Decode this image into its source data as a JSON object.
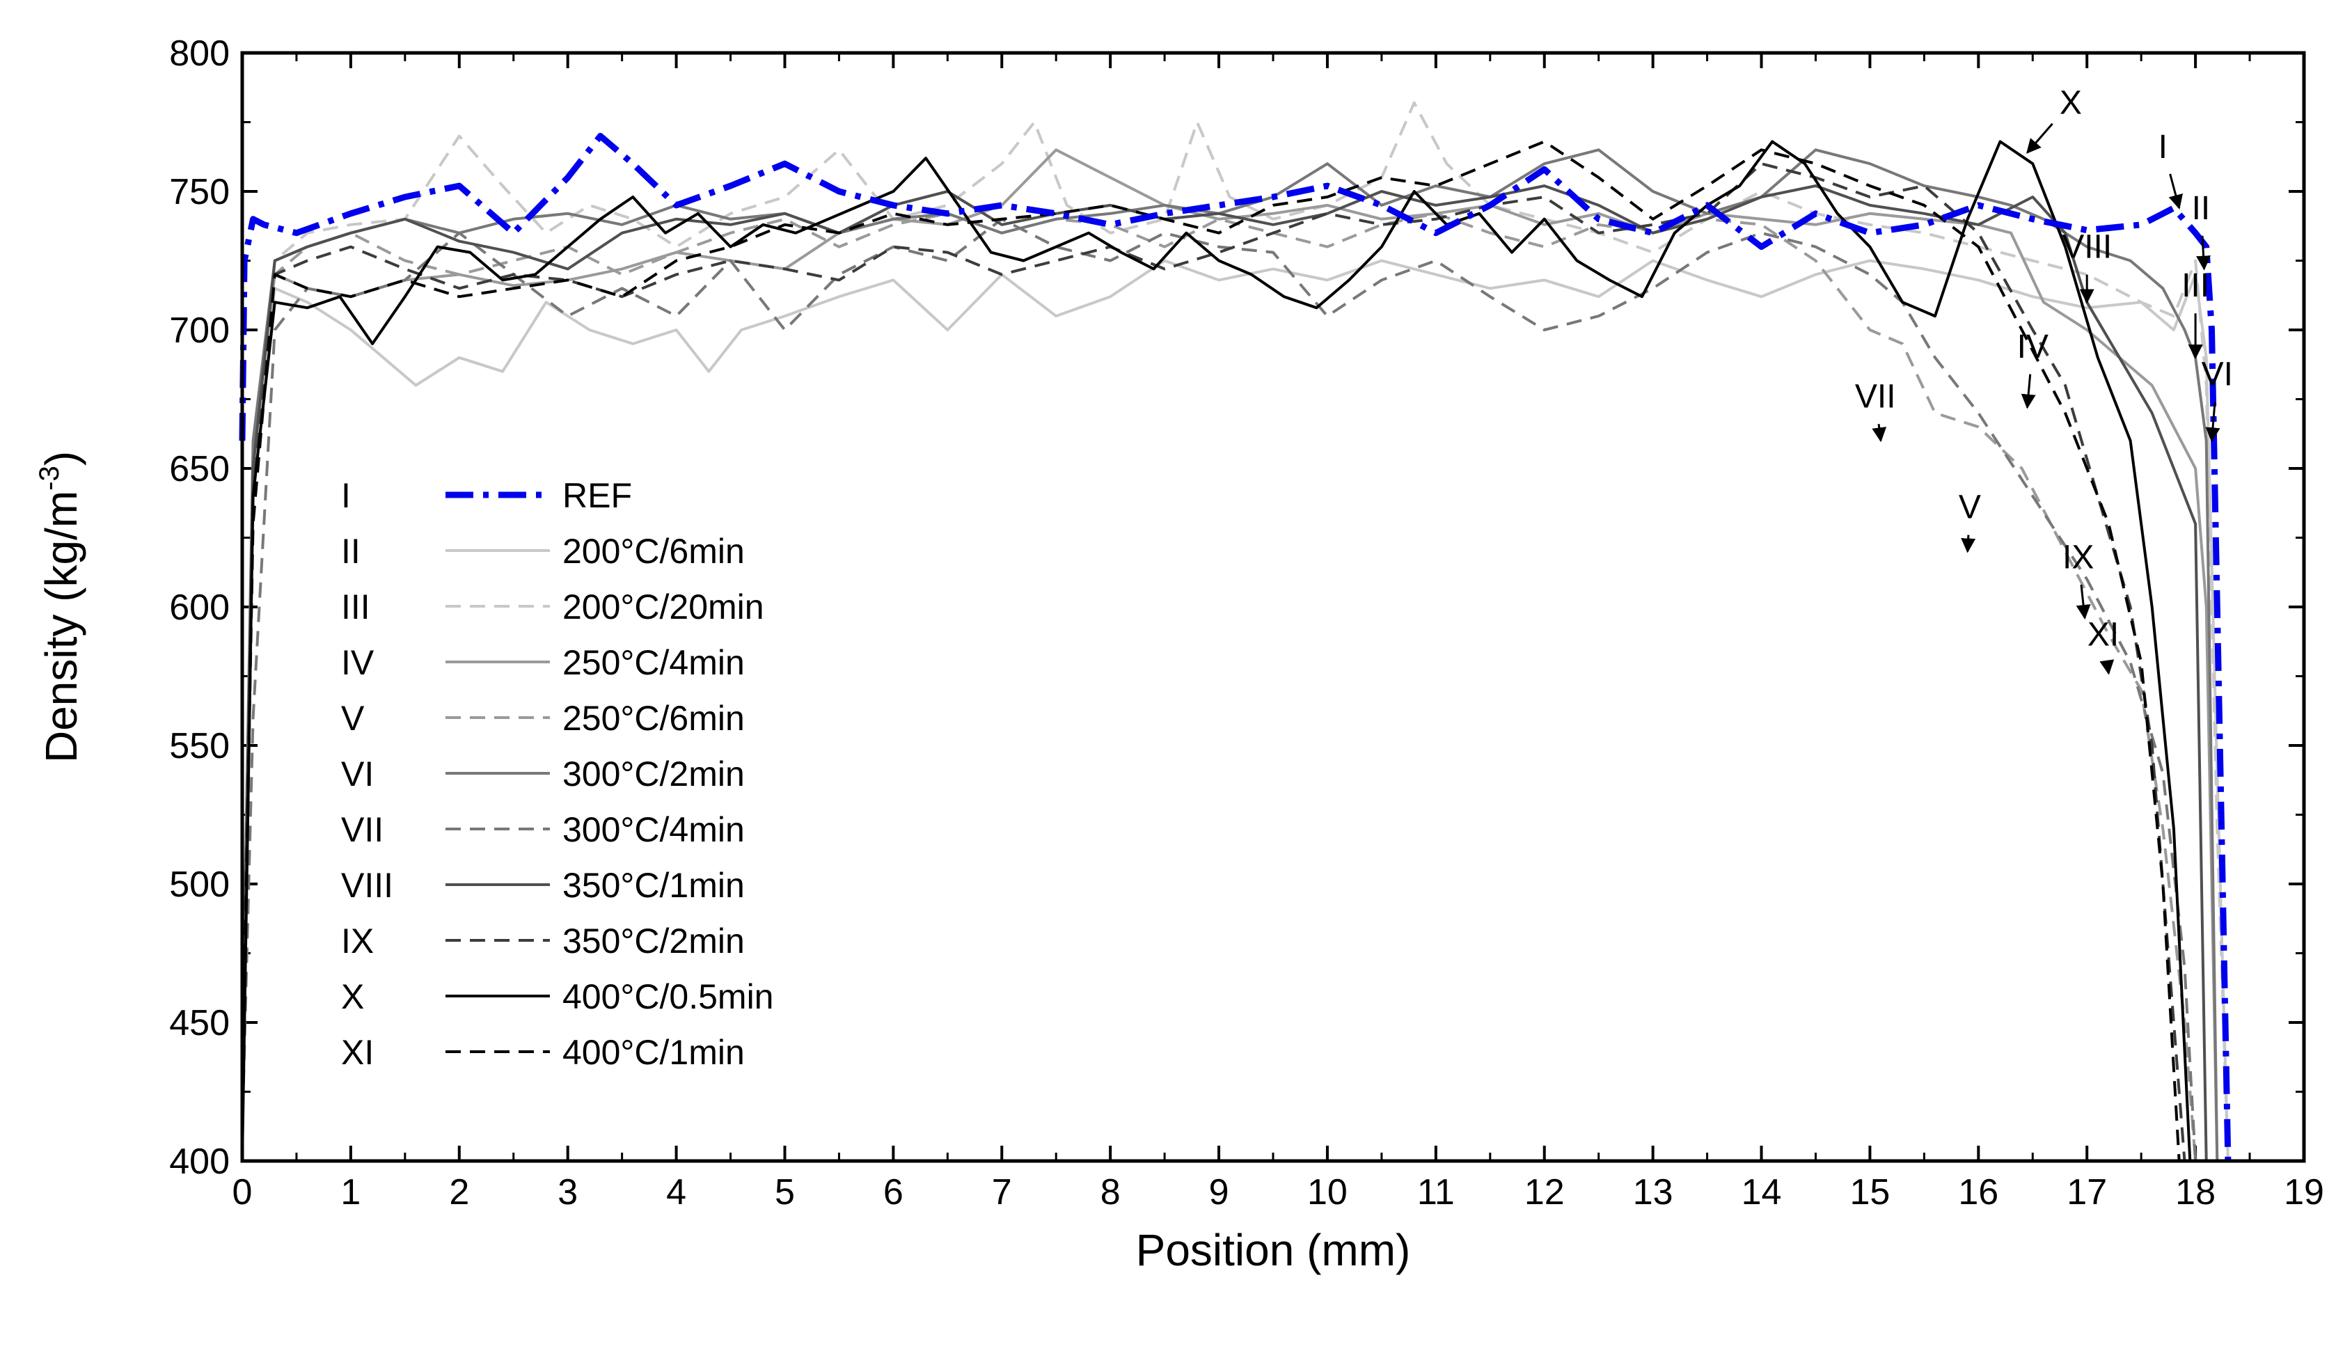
{
  "chart_data": {
    "type": "line",
    "title": "",
    "xlabel": "Position (mm)",
    "ylabel_main": "Density (kg/m",
    "ylabel_sup": "-3",
    "ylabel_close": ")",
    "xlim": [
      0,
      19
    ],
    "ylim": [
      400,
      800
    ],
    "xticks": [
      0,
      1,
      2,
      3,
      4,
      5,
      6,
      7,
      8,
      9,
      10,
      11,
      12,
      13,
      14,
      15,
      16,
      17,
      18,
      19
    ],
    "yticks": [
      400,
      450,
      500,
      550,
      600,
      650,
      700,
      750,
      800
    ],
    "legend": {
      "placement": "left-center"
    },
    "series": [
      {
        "id": "I",
        "name": "REF",
        "color": "#0000ee",
        "style": "dashdot",
        "width": 9,
        "x": [
          0,
          0.02,
          0.1,
          0.2,
          0.5,
          1.0,
          1.5,
          2.0,
          2.5,
          3.0,
          3.3,
          3.6,
          4.0,
          4.5,
          5.0,
          5.5,
          6.0,
          6.5,
          7.0,
          7.5,
          8.0,
          8.5,
          9.0,
          9.5,
          10.0,
          10.5,
          11.0,
          11.5,
          12.0,
          12.5,
          13.0,
          13.5,
          14.0,
          14.5,
          15.0,
          15.5,
          16.0,
          16.5,
          17.0,
          17.5,
          17.8,
          18.0,
          18.1,
          18.15,
          18.2,
          18.25,
          18.3
        ],
        "y": [
          660,
          725,
          740,
          738,
          735,
          742,
          748,
          752,
          735,
          755,
          770,
          760,
          745,
          752,
          760,
          750,
          745,
          742,
          745,
          742,
          738,
          742,
          745,
          748,
          752,
          745,
          735,
          745,
          758,
          740,
          735,
          745,
          730,
          742,
          735,
          738,
          745,
          740,
          736,
          738,
          744,
          735,
          730,
          700,
          600,
          500,
          400
        ]
      },
      {
        "id": "II",
        "name": "200°C/6min",
        "color": "#c8c8c8",
        "style": "solid",
        "width": 4,
        "x": [
          0,
          0.1,
          0.3,
          0.6,
          1.0,
          1.3,
          1.6,
          2.0,
          2.4,
          2.8,
          3.2,
          3.6,
          4.0,
          4.3,
          4.6,
          5.0,
          5.5,
          6.0,
          6.5,
          7.0,
          7.5,
          8.0,
          8.5,
          9.0,
          9.5,
          10.0,
          10.5,
          11.0,
          11.5,
          12.0,
          12.5,
          13.0,
          13.5,
          14.0,
          14.5,
          15.0,
          15.5,
          16.0,
          16.5,
          17.0,
          17.5,
          17.8,
          18.0,
          18.1,
          18.2,
          18.3
        ],
        "y": [
          420,
          650,
          715,
          710,
          700,
          690,
          680,
          690,
          685,
          710,
          700,
          695,
          700,
          685,
          700,
          705,
          712,
          718,
          700,
          720,
          705,
          712,
          725,
          718,
          722,
          718,
          725,
          720,
          715,
          718,
          712,
          725,
          718,
          712,
          720,
          725,
          722,
          718,
          712,
          708,
          710,
          700,
          720,
          690,
          540,
          400
        ]
      },
      {
        "id": "III",
        "name": "200°C/20min",
        "color": "#c8c8c8",
        "style": "dashed",
        "width": 4,
        "x": [
          0,
          0.1,
          0.3,
          0.6,
          1.0,
          1.5,
          2.0,
          2.4,
          2.8,
          3.2,
          3.6,
          4.0,
          4.5,
          5.0,
          5.5,
          6.0,
          6.5,
          7.0,
          7.3,
          7.6,
          8.0,
          8.5,
          8.8,
          9.1,
          9.5,
          10.0,
          10.5,
          10.8,
          11.1,
          11.5,
          12.0,
          12.5,
          13.0,
          13.5,
          14.0,
          14.5,
          15.0,
          15.5,
          16.0,
          16.5,
          17.0,
          17.5,
          17.8,
          18.0,
          18.1,
          18.2,
          18.3
        ],
        "y": [
          430,
          640,
          725,
          735,
          738,
          740,
          770,
          752,
          735,
          745,
          740,
          730,
          742,
          748,
          765,
          740,
          745,
          760,
          775,
          745,
          735,
          740,
          775,
          748,
          740,
          745,
          755,
          782,
          760,
          745,
          740,
          735,
          728,
          740,
          750,
          742,
          738,
          735,
          730,
          725,
          720,
          710,
          705,
          725,
          680,
          520,
          400
        ]
      },
      {
        "id": "IV",
        "name": "250°C/4min",
        "color": "#9a9a9a",
        "style": "solid",
        "width": 4,
        "x": [
          0,
          0.1,
          0.3,
          0.6,
          1.0,
          1.5,
          2.0,
          2.5,
          3.0,
          3.5,
          4.0,
          4.5,
          5.0,
          5.5,
          6.0,
          6.5,
          7.0,
          7.5,
          8.0,
          8.5,
          9.0,
          9.5,
          10.0,
          10.5,
          11.0,
          11.5,
          12.0,
          12.5,
          13.0,
          13.5,
          14.0,
          14.5,
          15.0,
          15.5,
          16.0,
          16.3,
          16.6,
          17.0,
          17.3,
          17.6,
          17.8,
          18.0,
          18.1,
          18.2
        ],
        "y": [
          430,
          655,
          720,
          715,
          712,
          718,
          720,
          716,
          718,
          722,
          728,
          725,
          722,
          735,
          740,
          738,
          745,
          765,
          755,
          745,
          740,
          742,
          745,
          740,
          742,
          745,
          738,
          742,
          735,
          742,
          740,
          738,
          742,
          740,
          738,
          735,
          710,
          700,
          690,
          680,
          665,
          650,
          600,
          400
        ]
      },
      {
        "id": "V",
        "name": "250°C/6min",
        "color": "#9a9a9a",
        "style": "dashed",
        "width": 4,
        "x": [
          0,
          0.1,
          0.3,
          0.6,
          1.0,
          1.5,
          2.0,
          2.5,
          3.0,
          3.5,
          4.0,
          4.5,
          5.0,
          5.5,
          6.0,
          6.5,
          7.0,
          7.5,
          8.0,
          8.5,
          9.0,
          9.5,
          10.0,
          10.5,
          11.0,
          11.5,
          12.0,
          12.5,
          13.0,
          13.5,
          14.0,
          14.5,
          15.0,
          15.3,
          15.6,
          16.0,
          16.4,
          16.8,
          17.2,
          17.5,
          17.7,
          17.9,
          18.0
        ],
        "y": [
          420,
          640,
          720,
          730,
          735,
          725,
          720,
          725,
          730,
          720,
          728,
          735,
          740,
          730,
          738,
          742,
          735,
          740,
          738,
          730,
          740,
          735,
          730,
          738,
          742,
          735,
          730,
          738,
          735,
          740,
          738,
          725,
          700,
          695,
          670,
          665,
          650,
          620,
          590,
          570,
          520,
          450,
          400
        ]
      },
      {
        "id": "VI",
        "name": "300°C/2min",
        "color": "#787878",
        "style": "solid",
        "width": 4,
        "x": [
          0,
          0.1,
          0.3,
          0.6,
          1.0,
          1.5,
          2.0,
          2.5,
          3.0,
          3.5,
          4.0,
          4.5,
          5.0,
          5.5,
          6.0,
          6.5,
          7.0,
          7.5,
          8.0,
          8.5,
          9.0,
          9.5,
          10.0,
          10.5,
          11.0,
          11.5,
          12.0,
          12.5,
          13.0,
          13.5,
          14.0,
          14.5,
          15.0,
          15.5,
          16.0,
          16.3,
          16.6,
          17.0,
          17.4,
          17.7,
          17.9,
          18.0,
          18.1,
          18.2
        ],
        "y": [
          440,
          660,
          725,
          730,
          735,
          740,
          735,
          740,
          742,
          738,
          745,
          740,
          742,
          735,
          740,
          742,
          735,
          740,
          742,
          745,
          742,
          748,
          760,
          745,
          752,
          748,
          760,
          765,
          750,
          742,
          748,
          765,
          760,
          752,
          748,
          745,
          740,
          730,
          725,
          715,
          700,
          690,
          660,
          400
        ]
      },
      {
        "id": "VII",
        "name": "300°C/4min",
        "color": "#787878",
        "style": "dashed",
        "width": 4,
        "x": [
          0,
          0.1,
          0.3,
          0.6,
          1.0,
          1.5,
          2.0,
          2.5,
          3.0,
          3.5,
          4.0,
          4.5,
          5.0,
          5.5,
          6.0,
          6.5,
          7.0,
          7.5,
          8.0,
          8.5,
          9.0,
          9.5,
          10.0,
          10.5,
          11.0,
          11.5,
          12.0,
          12.5,
          13.0,
          13.5,
          14.0,
          14.5,
          15.0,
          15.3,
          15.6,
          16.0,
          16.5,
          17.0,
          17.4,
          17.7,
          17.9,
          18.0
        ],
        "y": [
          410,
          560,
          700,
          715,
          712,
          718,
          735,
          720,
          705,
          715,
          705,
          725,
          700,
          720,
          730,
          725,
          740,
          730,
          725,
          735,
          730,
          728,
          705,
          718,
          725,
          712,
          700,
          705,
          715,
          728,
          735,
          730,
          720,
          710,
          690,
          670,
          640,
          610,
          580,
          540,
          470,
          400
        ]
      },
      {
        "id": "VIII",
        "name": "350°C/1min",
        "color": "#505050",
        "style": "solid",
        "width": 4,
        "x": [
          0,
          0.1,
          0.3,
          0.6,
          1.0,
          1.5,
          2.0,
          2.5,
          3.0,
          3.5,
          4.0,
          4.5,
          5.0,
          5.5,
          6.0,
          6.5,
          7.0,
          7.5,
          8.0,
          8.5,
          9.0,
          9.5,
          10.0,
          10.5,
          11.0,
          11.5,
          12.0,
          12.5,
          13.0,
          13.5,
          14.0,
          14.5,
          15.0,
          15.5,
          16.0,
          16.5,
          16.8,
          17.0,
          17.3,
          17.6,
          17.9,
          18.0,
          18.1
        ],
        "y": [
          430,
          650,
          725,
          730,
          735,
          740,
          732,
          728,
          722,
          735,
          740,
          738,
          742,
          735,
          745,
          750,
          738,
          742,
          745,
          740,
          742,
          738,
          742,
          750,
          745,
          748,
          752,
          745,
          735,
          740,
          748,
          752,
          745,
          742,
          738,
          748,
          735,
          710,
          690,
          670,
          640,
          630,
          400
        ]
      },
      {
        "id": "IX",
        "name": "350°C/2min",
        "color": "#3c3c3c",
        "style": "dashed",
        "width": 4,
        "x": [
          0,
          0.1,
          0.3,
          0.6,
          1.0,
          1.5,
          2.0,
          2.5,
          3.0,
          3.5,
          4.0,
          4.5,
          5.0,
          5.5,
          6.0,
          6.5,
          7.0,
          7.5,
          8.0,
          8.5,
          9.0,
          9.5,
          10.0,
          10.5,
          11.0,
          11.5,
          12.0,
          12.5,
          13.0,
          13.5,
          14.0,
          14.5,
          15.0,
          15.5,
          16.0,
          16.5,
          16.8,
          17.1,
          17.4,
          17.6,
          17.8,
          17.9
        ],
        "y": [
          420,
          640,
          720,
          725,
          730,
          722,
          715,
          720,
          718,
          712,
          720,
          725,
          722,
          718,
          730,
          728,
          720,
          725,
          730,
          722,
          728,
          735,
          742,
          738,
          740,
          745,
          748,
          735,
          738,
          742,
          760,
          755,
          748,
          752,
          735,
          700,
          680,
          640,
          600,
          550,
          450,
          400
        ]
      },
      {
        "id": "X",
        "name": "400°C/0.5min",
        "color": "#000000",
        "style": "solid",
        "width": 4,
        "x": [
          0,
          0.1,
          0.3,
          0.6,
          0.9,
          1.2,
          1.5,
          1.8,
          2.1,
          2.4,
          2.7,
          3.0,
          3.3,
          3.6,
          3.9,
          4.2,
          4.5,
          4.8,
          5.1,
          5.4,
          5.7,
          6.0,
          6.3,
          6.6,
          6.9,
          7.2,
          7.5,
          7.8,
          8.1,
          8.4,
          8.7,
          9.0,
          9.3,
          9.6,
          9.9,
          10.2,
          10.5,
          10.8,
          11.1,
          11.4,
          11.7,
          12.0,
          12.3,
          12.6,
          12.9,
          13.2,
          13.5,
          13.8,
          14.1,
          14.4,
          14.7,
          15.0,
          15.3,
          15.6,
          15.9,
          16.2,
          16.5,
          16.8,
          17.1,
          17.4,
          17.6,
          17.8,
          17.95
        ],
        "y": [
          400,
          640,
          710,
          708,
          712,
          695,
          712,
          730,
          728,
          718,
          720,
          730,
          740,
          748,
          735,
          742,
          730,
          738,
          735,
          740,
          745,
          750,
          762,
          745,
          728,
          725,
          730,
          735,
          728,
          722,
          735,
          725,
          720,
          712,
          708,
          718,
          730,
          750,
          738,
          742,
          728,
          740,
          725,
          718,
          712,
          735,
          745,
          752,
          768,
          760,
          742,
          730,
          710,
          705,
          740,
          768,
          760,
          730,
          690,
          660,
          600,
          520,
          400
        ]
      },
      {
        "id": "XI",
        "name": "400°C/1min",
        "color": "#000000",
        "style": "dashed",
        "width": 4,
        "x": [
          0,
          0.1,
          0.3,
          0.6,
          1.0,
          1.5,
          2.0,
          2.5,
          3.0,
          3.5,
          4.0,
          4.5,
          5.0,
          5.5,
          6.0,
          6.5,
          7.0,
          7.5,
          8.0,
          8.5,
          9.0,
          9.5,
          10.0,
          10.5,
          11.0,
          11.5,
          12.0,
          12.5,
          13.0,
          13.5,
          14.0,
          14.5,
          15.0,
          15.5,
          16.0,
          16.4,
          16.8,
          17.2,
          17.5,
          17.7,
          17.85
        ],
        "y": [
          420,
          630,
          720,
          715,
          712,
          718,
          712,
          715,
          718,
          712,
          725,
          730,
          738,
          735,
          742,
          738,
          740,
          742,
          745,
          740,
          735,
          745,
          748,
          755,
          752,
          760,
          768,
          755,
          740,
          752,
          765,
          760,
          752,
          745,
          730,
          700,
          670,
          630,
          580,
          500,
          400
        ]
      }
    ],
    "annotations": [
      {
        "label": "X",
        "tx": 16.85,
        "ty": 778,
        "hx": 16.45,
        "hy": 764,
        "dx": 0,
        "dy": 0
      },
      {
        "label": "I",
        "tx": 17.7,
        "ty": 762,
        "hx": 17.85,
        "hy": 744,
        "dx": 0,
        "dy": 0
      },
      {
        "label": "II",
        "tx": 18.05,
        "ty": 740,
        "hx": 18.08,
        "hy": 722,
        "dx": 0,
        "dy": 0
      },
      {
        "label": "VIII",
        "tx": 17.0,
        "ty": 726,
        "hx": 17.0,
        "hy": 710,
        "dx": 0,
        "dy": 0
      },
      {
        "label": "III",
        "tx": 18.0,
        "ty": 712,
        "hx": 18.0,
        "hy": 690,
        "dx": 0,
        "dy": 0
      },
      {
        "label": "VI",
        "tx": 18.2,
        "ty": 680,
        "hx": 18.15,
        "hy": 660,
        "dx": 0,
        "dy": 0
      },
      {
        "label": "IV",
        "tx": 16.5,
        "ty": 690,
        "hx": 16.45,
        "hy": 672,
        "dx": 0,
        "dy": 0
      },
      {
        "label": "VII",
        "tx": 15.05,
        "ty": 672,
        "hx": 15.1,
        "hy": 660,
        "dx": 0,
        "dy": 0
      },
      {
        "label": "V",
        "tx": 15.92,
        "ty": 632,
        "hx": 15.9,
        "hy": 620,
        "dx": 0,
        "dy": 0
      },
      {
        "label": "IX",
        "tx": 16.92,
        "ty": 614,
        "hx": 16.98,
        "hy": 596,
        "dx": 0,
        "dy": 0
      },
      {
        "label": "XI",
        "tx": 17.15,
        "ty": 586,
        "hx": 17.2,
        "hy": 576,
        "dx": 0,
        "dy": 0
      }
    ]
  }
}
